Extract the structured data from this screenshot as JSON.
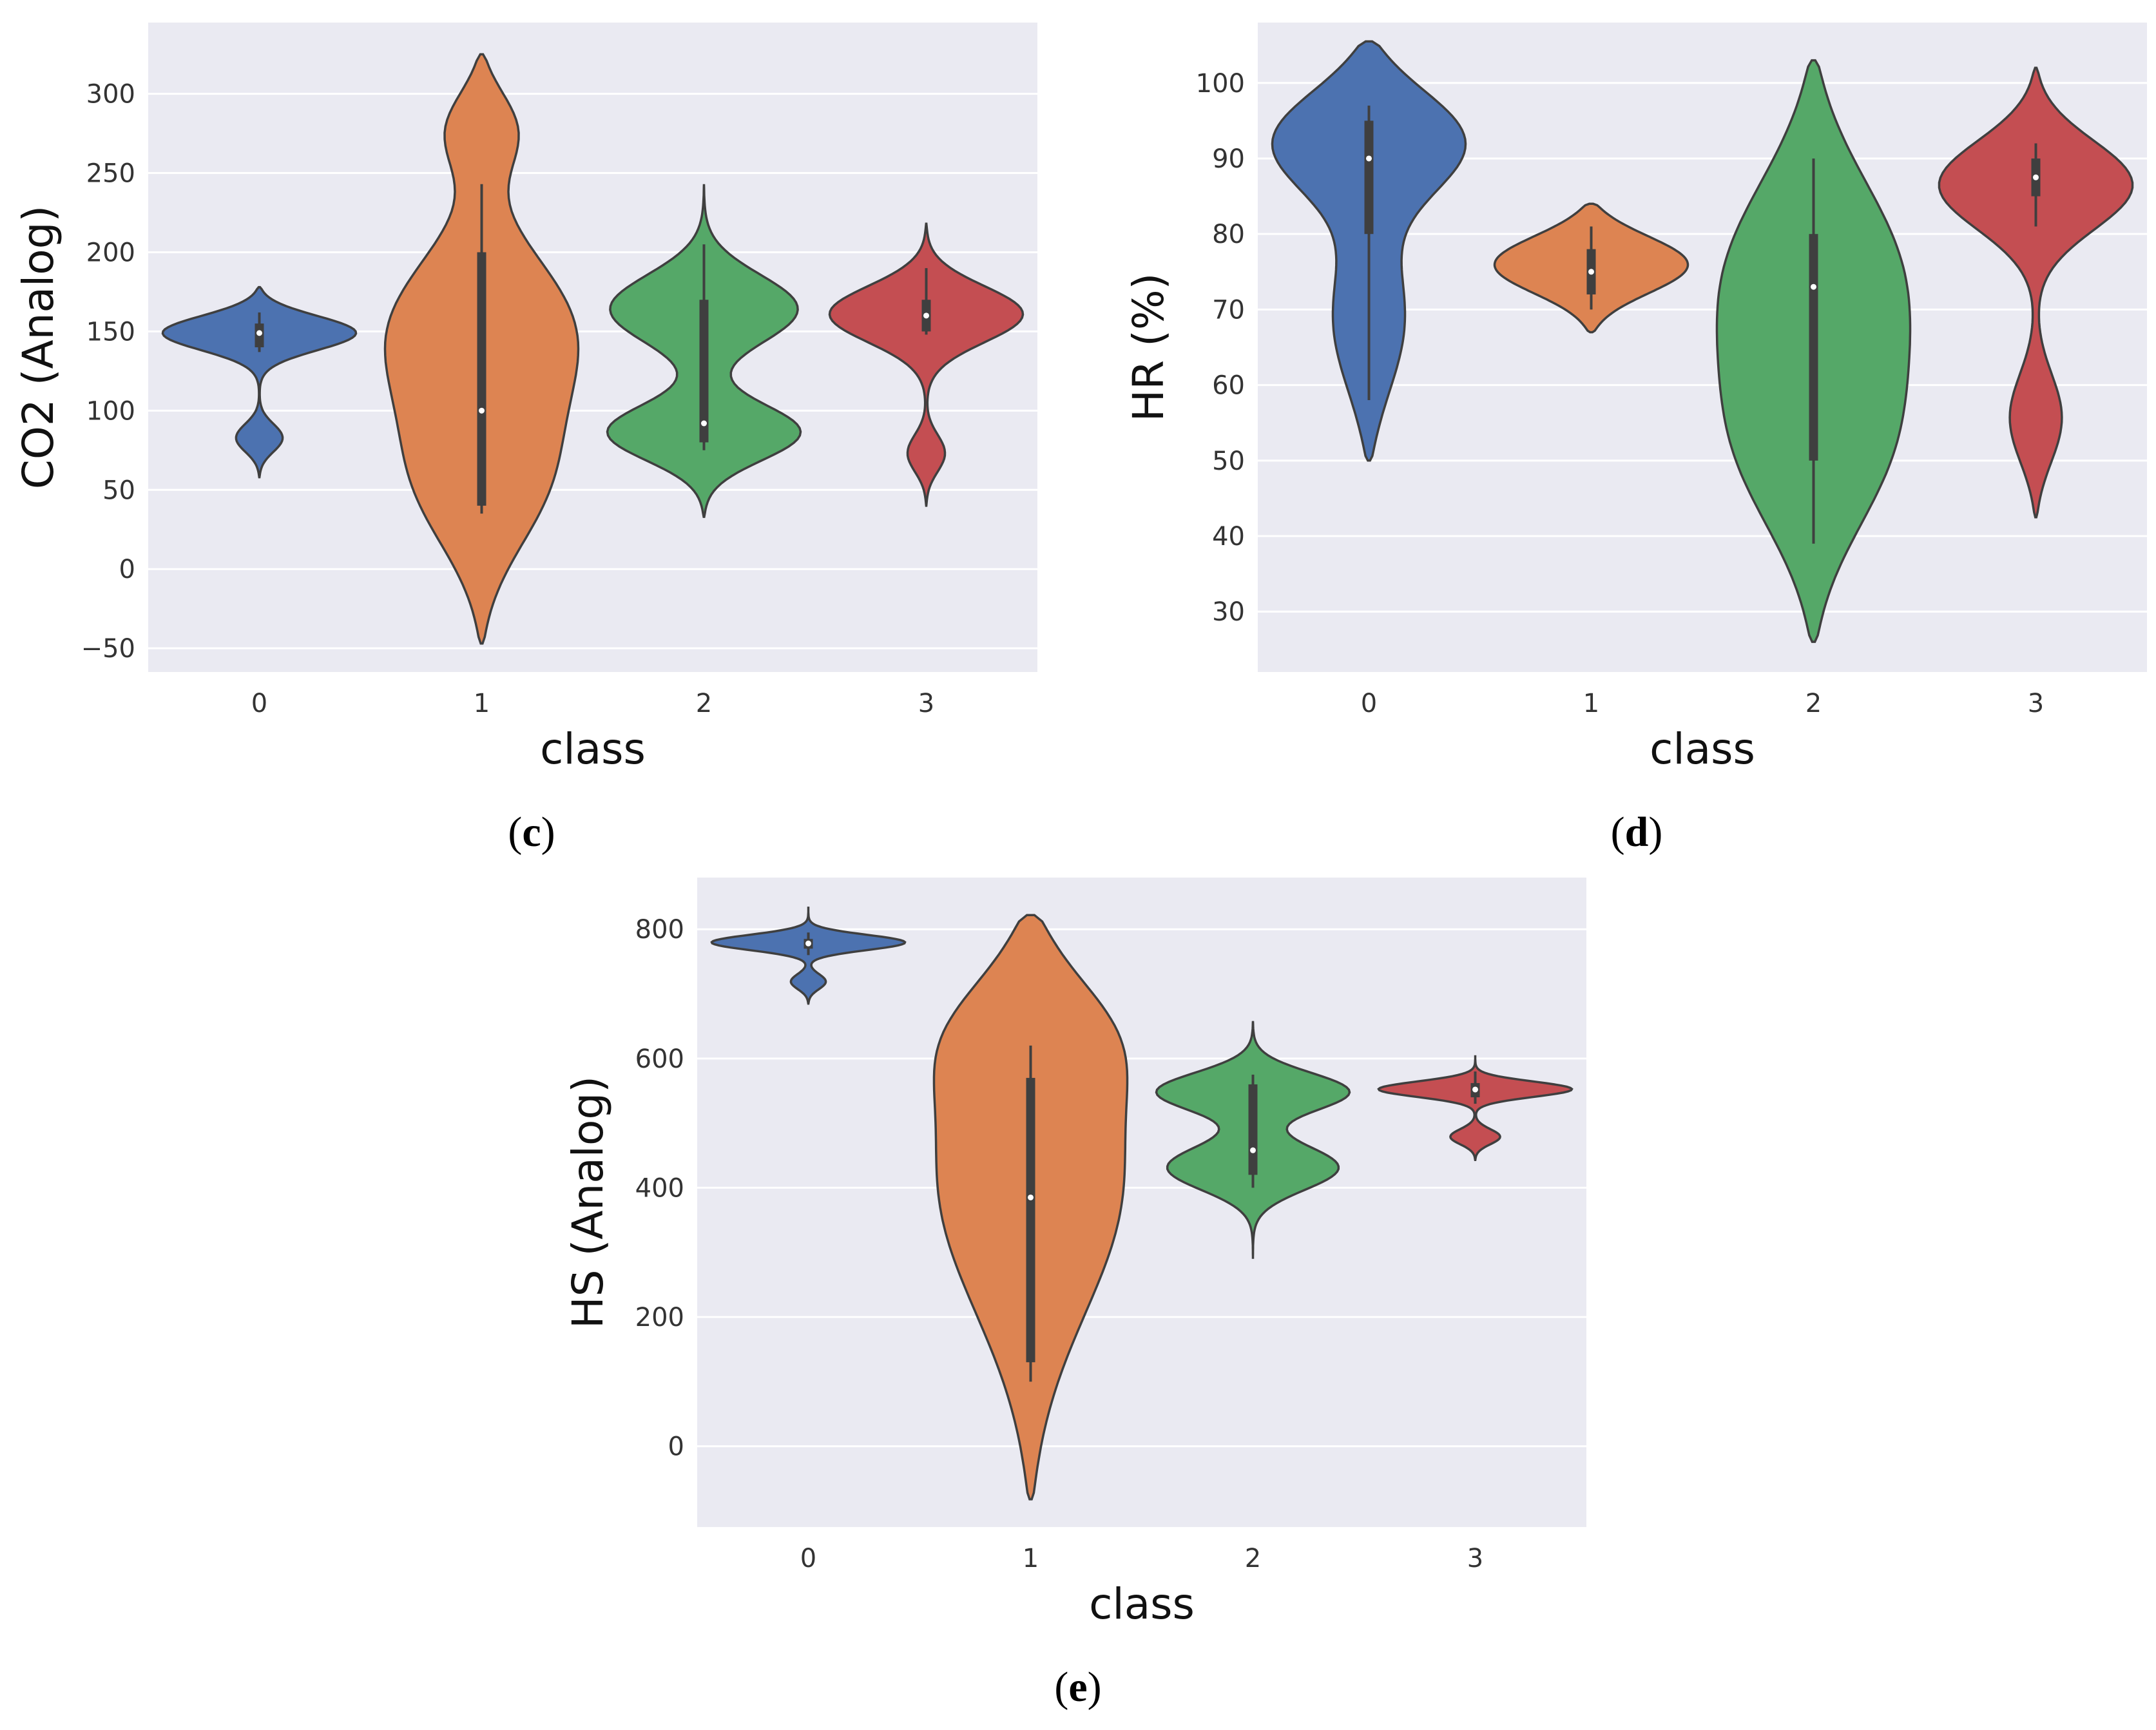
{
  "chart_data": [
    {
      "panel": "c",
      "type": "violin",
      "caption": "c",
      "xlabel": "class",
      "ylabel": "CO2 (Analog)",
      "categories": [
        "0",
        "1",
        "2",
        "3"
      ],
      "ylim": [
        -65,
        345
      ],
      "yticks": [
        -50,
        0,
        50,
        100,
        150,
        200,
        250,
        300
      ],
      "ytick_labels": [
        "−50",
        "0",
        "50",
        "100",
        "150",
        "200",
        "250",
        "300"
      ],
      "grid": true,
      "colors": [
        "#4c72b0",
        "#dd8452",
        "#55a868",
        "#c44e52"
      ],
      "violins": [
        {
          "class": "0",
          "min": 58,
          "max": 178,
          "q1": 140,
          "median": 149,
          "q3": 155,
          "whisker_low": 137,
          "whisker_high": 162,
          "modes": [
            [
              150,
              1.0,
              11
            ],
            [
              82,
              0.25,
              9
            ]
          ]
        },
        {
          "class": "1",
          "min": -47,
          "max": 325,
          "q1": 40,
          "median": 100,
          "q3": 200,
          "whisker_low": 35,
          "whisker_high": 243,
          "modes": [
            [
              150,
              1.0,
              50
            ],
            [
              50,
              0.7,
              45
            ],
            [
              280,
              0.5,
              25
            ]
          ]
        },
        {
          "class": "2",
          "min": 33,
          "max": 243,
          "q1": 80,
          "median": 92,
          "q3": 170,
          "whisker_low": 75,
          "whisker_high": 205,
          "modes": [
            [
              85,
              1.0,
              18
            ],
            [
              165,
              0.9,
              22
            ]
          ]
        },
        {
          "class": "3",
          "min": 40,
          "max": 218,
          "q1": 150,
          "median": 160,
          "q3": 170,
          "whisker_low": 148,
          "whisker_high": 190,
          "modes": [
            [
              162,
              1.0,
              18
            ],
            [
              72,
              0.22,
              12
            ]
          ]
        }
      ]
    },
    {
      "panel": "d",
      "type": "violin",
      "caption": "d",
      "xlabel": "class",
      "ylabel": "HR (%)",
      "categories": [
        "0",
        "1",
        "2",
        "3"
      ],
      "ylim": [
        22,
        108
      ],
      "yticks": [
        30,
        40,
        50,
        60,
        70,
        80,
        90,
        100
      ],
      "ytick_labels": [
        "30",
        "40",
        "50",
        "60",
        "70",
        "80",
        "90",
        "100"
      ],
      "grid": true,
      "colors": [
        "#4c72b0",
        "#dd8452",
        "#55a868",
        "#c44e52"
      ],
      "violins": [
        {
          "class": "0",
          "min": 50,
          "max": 105.5,
          "q1": 80,
          "median": 90,
          "q3": 95,
          "whisker_low": 58,
          "whisker_high": 97,
          "modes": [
            [
              93,
              1.0,
              7
            ],
            [
              68,
              0.35,
              10
            ]
          ]
        },
        {
          "class": "1",
          "min": 67,
          "max": 84,
          "q1": 72,
          "median": 75,
          "q3": 78,
          "whisker_low": 70,
          "whisker_high": 81,
          "modes": [
            [
              76,
              1.0,
              4
            ]
          ]
        },
        {
          "class": "2",
          "min": 26,
          "max": 103,
          "q1": 50,
          "median": 73,
          "q3": 80,
          "whisker_low": 39,
          "whisker_high": 90,
          "modes": [
            [
              75,
              1.0,
              14
            ],
            [
              50,
              0.75,
              12
            ]
          ]
        },
        {
          "class": "3",
          "min": 42.5,
          "max": 102,
          "q1": 85,
          "median": 87.5,
          "q3": 90,
          "whisker_low": 81,
          "whisker_high": 92,
          "modes": [
            [
              87,
              1.0,
              6
            ],
            [
              55,
              0.28,
              6
            ]
          ]
        }
      ]
    },
    {
      "panel": "e",
      "type": "violin",
      "caption": "e",
      "xlabel": "class",
      "ylabel": "HS (Analog)",
      "categories": [
        "0",
        "1",
        "2",
        "3"
      ],
      "ylim": [
        -125,
        880
      ],
      "yticks": [
        0,
        200,
        400,
        600,
        800
      ],
      "ytick_labels": [
        "0",
        "200",
        "400",
        "600",
        "800"
      ],
      "grid": true,
      "colors": [
        "#4c72b0",
        "#dd8452",
        "#55a868",
        "#c44e52"
      ],
      "violins": [
        {
          "class": "0",
          "min": 685,
          "max": 835,
          "q1": 770,
          "median": 778,
          "q3": 785,
          "whisker_low": 760,
          "whisker_high": 795,
          "modes": [
            [
              780,
              1.0,
              12
            ],
            [
              718,
              0.2,
              12
            ]
          ]
        },
        {
          "class": "1",
          "min": -82,
          "max": 822,
          "q1": 130,
          "median": 385,
          "q3": 570,
          "whisker_low": 100,
          "whisker_high": 620,
          "modes": [
            [
              420,
              1.0,
              220
            ],
            [
              650,
              0.5,
              90
            ]
          ]
        },
        {
          "class": "2",
          "min": 290,
          "max": 658,
          "q1": 420,
          "median": 458,
          "q3": 560,
          "whisker_low": 400,
          "whisker_high": 575,
          "modes": [
            [
              550,
              1.0,
              30
            ],
            [
              430,
              0.85,
              35
            ]
          ]
        },
        {
          "class": "3",
          "min": 443,
          "max": 605,
          "q1": 540,
          "median": 552,
          "q3": 562,
          "whisker_low": 530,
          "whisker_high": 580,
          "modes": [
            [
              553,
              1.0,
              12
            ],
            [
              478,
              0.28,
              12
            ]
          ]
        }
      ]
    }
  ]
}
